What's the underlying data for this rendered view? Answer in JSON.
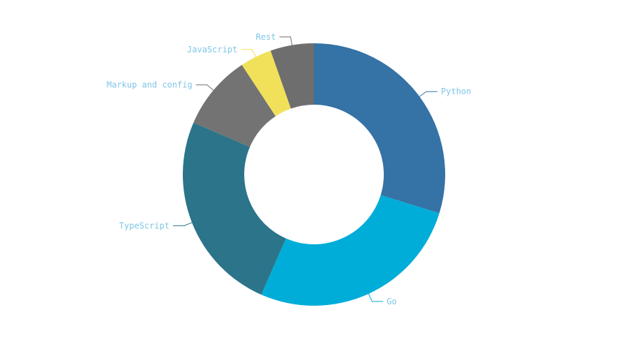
{
  "chart_data": {
    "type": "pie",
    "variant": "donut",
    "title": "",
    "slices": [
      {
        "label": "Python",
        "value": 30.5,
        "color": "#3572a5"
      },
      {
        "label": "Go",
        "value": 27.5,
        "color": "#00add8"
      },
      {
        "label": "TypeScript",
        "value": 25.5,
        "color": "#2b7489"
      },
      {
        "label": "Markup and config",
        "value": 9.5,
        "color": "#737373"
      },
      {
        "label": "JavaScript",
        "value": 4.0,
        "color": "#f1e05a"
      },
      {
        "label": "Rest",
        "value": 5.5,
        "color": "#6e6e6e"
      }
    ],
    "label_color": "#7fc6e6",
    "legend": "none"
  }
}
